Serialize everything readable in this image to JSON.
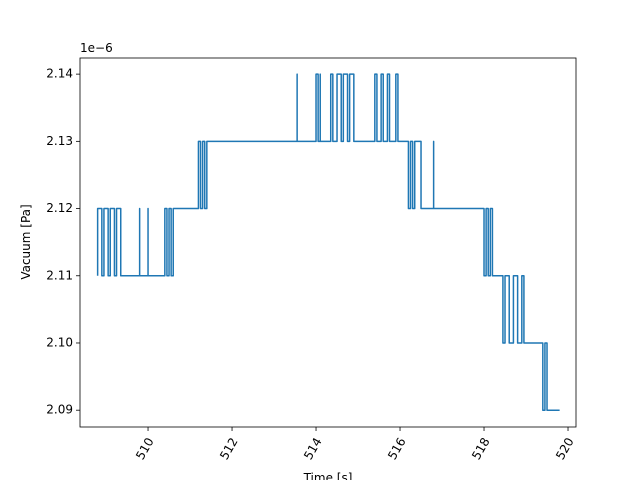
{
  "chart_data": {
    "type": "line",
    "xlabel": "Time [s]",
    "ylabel": "Vacuum [Pa]",
    "offset_text": "1e−6",
    "color": "#1f77b4",
    "xlim": [
      508.38,
      520.19
    ],
    "ylim": [
      2.0875,
      2.1424
    ],
    "xticks": [
      510,
      512,
      514,
      516,
      518,
      520
    ],
    "yticks": [
      2.09,
      {
        "value": 2.1,
        "label": "2.10"
      },
      2.11,
      2.12,
      2.13,
      2.14
    ],
    "x": [
      508.8,
      508.8,
      508.9,
      508.9,
      508.95,
      508.95,
      509.05,
      509.05,
      509.1,
      509.1,
      509.2,
      509.2,
      509.25,
      509.25,
      509.35,
      509.35,
      509.8,
      509.8,
      509.8,
      510.0,
      510.0,
      510.0,
      510.4,
      510.4,
      510.45,
      510.45,
      510.5,
      510.5,
      510.55,
      510.55,
      510.6,
      510.6,
      511.2,
      511.2,
      511.25,
      511.25,
      511.3,
      511.3,
      511.35,
      511.35,
      511.4,
      511.4,
      513.55,
      513.55,
      513.55,
      514.0,
      514.0,
      514.05,
      514.05,
      514.1,
      514.1,
      514.1,
      514.35,
      514.35,
      514.4,
      514.4,
      514.5,
      514.5,
      514.6,
      514.6,
      514.65,
      514.65,
      514.75,
      514.75,
      514.8,
      514.8,
      514.9,
      514.9,
      515.4,
      515.4,
      515.45,
      515.45,
      515.55,
      515.55,
      515.6,
      515.6,
      515.7,
      515.7,
      515.75,
      515.75,
      515.9,
      515.9,
      515.95,
      515.95,
      516.2,
      516.2,
      516.25,
      516.25,
      516.3,
      516.3,
      516.35,
      516.35,
      516.5,
      516.5,
      516.8,
      516.8,
      516.8,
      518.0,
      518.0,
      518.05,
      518.05,
      518.1,
      518.1,
      518.15,
      518.15,
      518.2,
      518.2,
      518.45,
      518.45,
      518.5,
      518.5,
      518.6,
      518.6,
      518.7,
      518.7,
      518.8,
      518.8,
      518.9,
      518.9,
      518.95,
      518.95,
      519.4,
      519.4,
      519.45,
      519.45,
      519.5,
      519.5,
      519.8
    ],
    "values": [
      2.11,
      2.12,
      2.12,
      2.11,
      2.11,
      2.12,
      2.12,
      2.11,
      2.11,
      2.12,
      2.12,
      2.11,
      2.11,
      2.12,
      2.12,
      2.11,
      2.11,
      2.12,
      2.11,
      2.11,
      2.12,
      2.11,
      2.11,
      2.12,
      2.12,
      2.11,
      2.11,
      2.12,
      2.12,
      2.11,
      2.11,
      2.12,
      2.12,
      2.13,
      2.13,
      2.12,
      2.12,
      2.13,
      2.13,
      2.12,
      2.12,
      2.13,
      2.13,
      2.14,
      2.13,
      2.13,
      2.14,
      2.14,
      2.13,
      2.13,
      2.14,
      2.13,
      2.13,
      2.14,
      2.14,
      2.13,
      2.13,
      2.14,
      2.14,
      2.13,
      2.13,
      2.14,
      2.14,
      2.13,
      2.13,
      2.14,
      2.14,
      2.13,
      2.13,
      2.14,
      2.14,
      2.13,
      2.13,
      2.14,
      2.14,
      2.13,
      2.13,
      2.14,
      2.14,
      2.13,
      2.13,
      2.14,
      2.14,
      2.13,
      2.13,
      2.12,
      2.12,
      2.13,
      2.13,
      2.12,
      2.12,
      2.13,
      2.13,
      2.12,
      2.12,
      2.13,
      2.12,
      2.12,
      2.11,
      2.11,
      2.12,
      2.12,
      2.11,
      2.11,
      2.12,
      2.12,
      2.11,
      2.11,
      2.1,
      2.1,
      2.11,
      2.11,
      2.1,
      2.1,
      2.11,
      2.11,
      2.1,
      2.1,
      2.11,
      2.11,
      2.1,
      2.1,
      2.09,
      2.09,
      2.1,
      2.1,
      2.09,
      2.09
    ]
  }
}
